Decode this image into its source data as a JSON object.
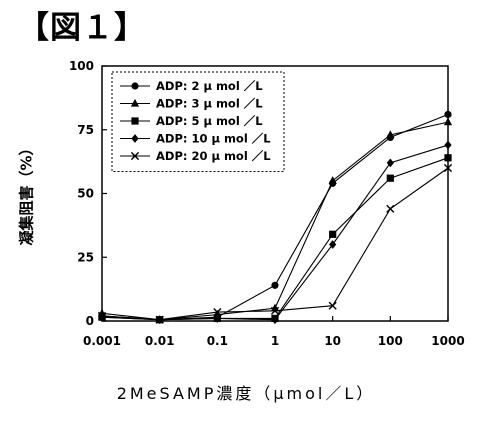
{
  "figure_label": "【図１】",
  "chart_data": {
    "type": "line",
    "x_scale": "log",
    "x": [
      0.001,
      0.01,
      0.1,
      1,
      10,
      100,
      1000
    ],
    "x_tick_labels": [
      "0.001",
      "0.01",
      "0.1",
      "1",
      "10",
      "100",
      "1000"
    ],
    "y_ticks": [
      0,
      25,
      50,
      75,
      100
    ],
    "ylim": [
      0,
      100
    ],
    "xlabel": "2MeSAMP濃度（μmol／L）",
    "ylabel": "凝集阻害（%）",
    "legend_position": "top-left",
    "grid": false,
    "series": [
      {
        "name": "ADP:  2 μ mol ／L",
        "marker": "circle",
        "values": [
          2,
          0.5,
          1.5,
          14,
          54,
          72,
          81
        ]
      },
      {
        "name": "ADP:  3 μ mol ／L",
        "marker": "triangle",
        "values": [
          3,
          0.5,
          2.5,
          5,
          55,
          73,
          78
        ]
      },
      {
        "name": "ADP:  5 μ mol ／L",
        "marker": "square",
        "values": [
          1.5,
          0.5,
          1,
          1,
          34,
          56,
          64
        ]
      },
      {
        "name": "ADP: 10 μ mol ／L",
        "marker": "diamond",
        "values": [
          1.5,
          0.5,
          1,
          0.5,
          30,
          62,
          69
        ]
      },
      {
        "name": "ADP: 20 μ mol ／L",
        "marker": "x",
        "values": [
          2,
          0.5,
          3.5,
          4,
          6,
          44,
          60
        ]
      }
    ]
  }
}
